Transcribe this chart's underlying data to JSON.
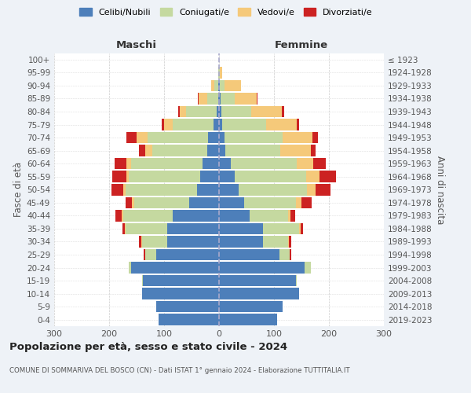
{
  "age_groups": [
    "0-4",
    "5-9",
    "10-14",
    "15-19",
    "20-24",
    "25-29",
    "30-34",
    "35-39",
    "40-44",
    "45-49",
    "50-54",
    "55-59",
    "60-64",
    "65-69",
    "70-74",
    "75-79",
    "80-84",
    "85-89",
    "90-94",
    "95-99",
    "100+"
  ],
  "birth_years": [
    "2019-2023",
    "2014-2018",
    "2009-2013",
    "2004-2008",
    "1999-2003",
    "1994-1998",
    "1989-1993",
    "1984-1988",
    "1979-1983",
    "1974-1978",
    "1969-1973",
    "1964-1968",
    "1959-1963",
    "1954-1958",
    "1949-1953",
    "1944-1948",
    "1939-1943",
    "1934-1938",
    "1929-1933",
    "1924-1928",
    "≤ 1923"
  ],
  "male": {
    "celibi": [
      110,
      115,
      140,
      138,
      160,
      115,
      95,
      95,
      85,
      55,
      40,
      35,
      30,
      22,
      20,
      10,
      5,
      2,
      1,
      0,
      0
    ],
    "coniugati": [
      0,
      0,
      0,
      2,
      5,
      20,
      45,
      75,
      90,
      100,
      130,
      130,
      130,
      100,
      110,
      75,
      55,
      20,
      8,
      1,
      0
    ],
    "vedovi": [
      0,
      0,
      0,
      0,
      0,
      0,
      1,
      1,
      2,
      3,
      4,
      4,
      8,
      12,
      20,
      15,
      12,
      15,
      5,
      0,
      0
    ],
    "divorziati": [
      0,
      0,
      0,
      0,
      0,
      2,
      5,
      5,
      12,
      12,
      22,
      25,
      22,
      12,
      18,
      5,
      3,
      2,
      0,
      0,
      0
    ]
  },
  "female": {
    "nubili": [
      105,
      115,
      145,
      140,
      155,
      110,
      80,
      80,
      55,
      45,
      35,
      28,
      22,
      12,
      10,
      6,
      4,
      3,
      2,
      0,
      0
    ],
    "coniugate": [
      0,
      0,
      0,
      2,
      12,
      18,
      45,
      65,
      70,
      95,
      125,
      130,
      120,
      100,
      105,
      80,
      55,
      25,
      8,
      1,
      0
    ],
    "vedove": [
      0,
      0,
      0,
      0,
      0,
      1,
      2,
      3,
      5,
      10,
      15,
      25,
      30,
      55,
      55,
      55,
      55,
      40,
      30,
      5,
      0
    ],
    "divorziate": [
      0,
      0,
      0,
      0,
      0,
      2,
      5,
      5,
      8,
      18,
      28,
      30,
      22,
      8,
      10,
      5,
      4,
      2,
      0,
      0,
      0
    ]
  },
  "colors": {
    "celibi": "#4d7fba",
    "coniugati": "#c5d9a0",
    "vedovi": "#f5c97a",
    "divorziati": "#cc2222"
  },
  "legend_labels": [
    "Celibi/Nubili",
    "Coniugati/e",
    "Vedovi/e",
    "Divorziati/e"
  ],
  "title": "Popolazione per età, sesso e stato civile - 2024",
  "subtitle": "COMUNE DI SOMMARIVA DEL BOSCO (CN) - Dati ISTAT 1° gennaio 2024 - Elaborazione TUTTITALIA.IT",
  "xlabel_left": "Maschi",
  "xlabel_right": "Femmine",
  "ylabel_left": "Fasce di età",
  "ylabel_right": "Anni di nascita",
  "xlim": 300,
  "background_color": "#eef2f7",
  "bar_background": "#ffffff"
}
